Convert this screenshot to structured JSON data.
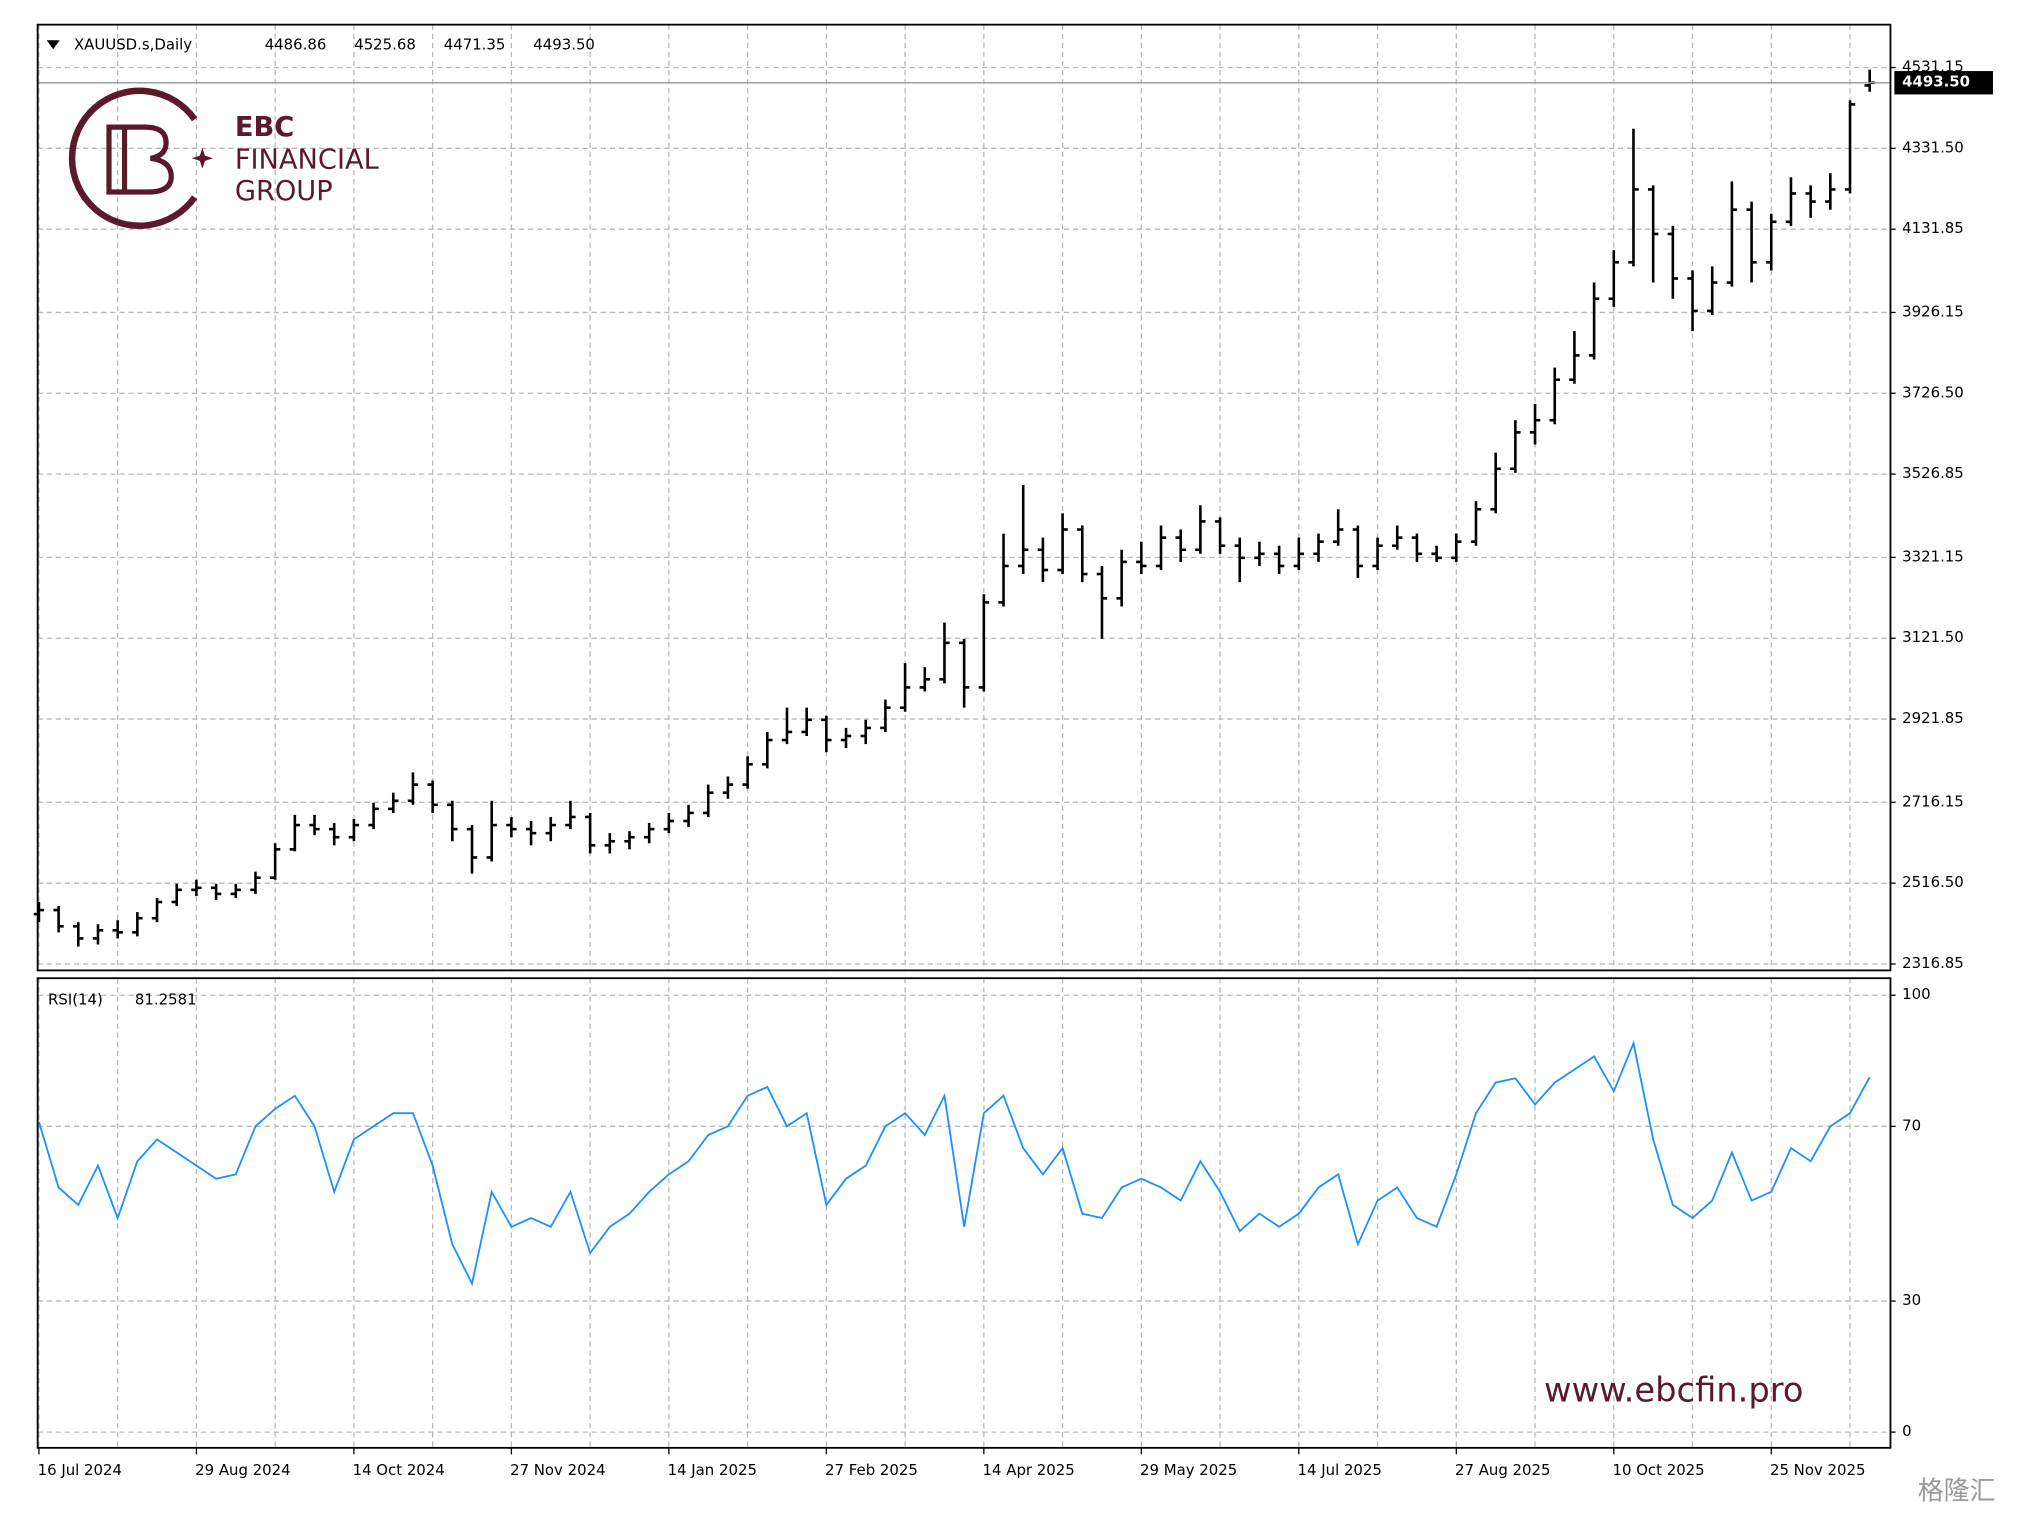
{
  "chart_data": {
    "type": "ohlc",
    "title": "XAUUSD.s,Daily",
    "header_values": [
      "4486.86",
      "4525.68",
      "4471.35",
      "4493.50"
    ],
    "color": "#000000",
    "categories": [
      "16 Jul 2024",
      null,
      null,
      null,
      null,
      null,
      null,
      null,
      "29 Aug 2024",
      null,
      null,
      null,
      null,
      null,
      null,
      null,
      "14 Oct 2024",
      null,
      null,
      null,
      null,
      null,
      null,
      null,
      "27 Nov 2024",
      null,
      null,
      null,
      null,
      null,
      null,
      null,
      "14 Jan 2025",
      null,
      null,
      null,
      null,
      null,
      null,
      null,
      "27 Feb 2025",
      null,
      null,
      null,
      null,
      null,
      null,
      null,
      "14 Apr 2025",
      null,
      null,
      null,
      null,
      null,
      null,
      null,
      "29 May 2025",
      null,
      null,
      null,
      null,
      null,
      null,
      null,
      "14 Jul 2025",
      null,
      null,
      null,
      null,
      null,
      null,
      null,
      "27 Aug 2025",
      null,
      null,
      null,
      null,
      null,
      null,
      null,
      "10 Oct 2025",
      null,
      null,
      null,
      null,
      null,
      null,
      null,
      "25 Nov 2025",
      null,
      null,
      null,
      null,
      null
    ],
    "values": [
      [
        2440,
        2470,
        2420,
        2450
      ],
      [
        2450,
        2460,
        2395,
        2410
      ],
      [
        2410,
        2420,
        2360,
        2380
      ],
      [
        2380,
        2415,
        2365,
        2400
      ],
      [
        2400,
        2425,
        2380,
        2395
      ],
      [
        2395,
        2445,
        2385,
        2430
      ],
      [
        2430,
        2480,
        2420,
        2470
      ],
      [
        2470,
        2515,
        2460,
        2500
      ],
      [
        2500,
        2525,
        2485,
        2505
      ],
      [
        2505,
        2515,
        2475,
        2490
      ],
      [
        2490,
        2515,
        2480,
        2500
      ],
      [
        2500,
        2545,
        2490,
        2530
      ],
      [
        2530,
        2615,
        2525,
        2600
      ],
      [
        2600,
        2685,
        2595,
        2660
      ],
      [
        2660,
        2685,
        2635,
        2650
      ],
      [
        2650,
        2665,
        2610,
        2630
      ],
      [
        2630,
        2675,
        2620,
        2660
      ],
      [
        2660,
        2715,
        2650,
        2700
      ],
      [
        2700,
        2740,
        2690,
        2720
      ],
      [
        2720,
        2790,
        2710,
        2760
      ],
      [
        2760,
        2770,
        2690,
        2710
      ],
      [
        2710,
        2720,
        2620,
        2650
      ],
      [
        2650,
        2660,
        2540,
        2580
      ],
      [
        2580,
        2720,
        2570,
        2660
      ],
      [
        2660,
        2680,
        2630,
        2650
      ],
      [
        2650,
        2670,
        2610,
        2640
      ],
      [
        2640,
        2680,
        2620,
        2660
      ],
      [
        2660,
        2720,
        2650,
        2680
      ],
      [
        2680,
        2690,
        2590,
        2610
      ],
      [
        2610,
        2640,
        2590,
        2620
      ],
      [
        2620,
        2645,
        2600,
        2630
      ],
      [
        2630,
        2665,
        2615,
        2650
      ],
      [
        2650,
        2690,
        2640,
        2670
      ],
      [
        2670,
        2710,
        2655,
        2690
      ],
      [
        2690,
        2760,
        2680,
        2740
      ],
      [
        2740,
        2780,
        2725,
        2760
      ],
      [
        2760,
        2830,
        2750,
        2810
      ],
      [
        2810,
        2890,
        2800,
        2870
      ],
      [
        2870,
        2950,
        2860,
        2890
      ],
      [
        2890,
        2950,
        2880,
        2920
      ],
      [
        2920,
        2930,
        2840,
        2870
      ],
      [
        2870,
        2900,
        2850,
        2880
      ],
      [
        2880,
        2920,
        2860,
        2900
      ],
      [
        2900,
        2970,
        2890,
        2950
      ],
      [
        2950,
        3060,
        2940,
        3000
      ],
      [
        3000,
        3050,
        2990,
        3020
      ],
      [
        3020,
        3160,
        3010,
        3110
      ],
      [
        3110,
        3120,
        2950,
        3000
      ],
      [
        3000,
        3230,
        2990,
        3210
      ],
      [
        3210,
        3380,
        3200,
        3300
      ],
      [
        3300,
        3500,
        3280,
        3340
      ],
      [
        3340,
        3370,
        3260,
        3290
      ],
      [
        3290,
        3430,
        3280,
        3390
      ],
      [
        3390,
        3400,
        3260,
        3280
      ],
      [
        3280,
        3300,
        3120,
        3220
      ],
      [
        3220,
        3340,
        3200,
        3310
      ],
      [
        3310,
        3360,
        3280,
        3300
      ],
      [
        3300,
        3400,
        3290,
        3370
      ],
      [
        3370,
        3390,
        3310,
        3340
      ],
      [
        3340,
        3450,
        3330,
        3410
      ],
      [
        3410,
        3420,
        3330,
        3350
      ],
      [
        3350,
        3370,
        3260,
        3320
      ],
      [
        3320,
        3360,
        3300,
        3330
      ],
      [
        3330,
        3350,
        3280,
        3300
      ],
      [
        3300,
        3370,
        3290,
        3330
      ],
      [
        3330,
        3380,
        3310,
        3360
      ],
      [
        3360,
        3440,
        3350,
        3390
      ],
      [
        3390,
        3400,
        3270,
        3300
      ],
      [
        3300,
        3370,
        3290,
        3350
      ],
      [
        3350,
        3400,
        3340,
        3370
      ],
      [
        3370,
        3380,
        3310,
        3330
      ],
      [
        3330,
        3350,
        3310,
        3320
      ],
      [
        3320,
        3380,
        3310,
        3360
      ],
      [
        3360,
        3460,
        3350,
        3440
      ],
      [
        3440,
        3580,
        3430,
        3540
      ],
      [
        3540,
        3660,
        3530,
        3630
      ],
      [
        3630,
        3700,
        3600,
        3660
      ],
      [
        3660,
        3790,
        3650,
        3760
      ],
      [
        3760,
        3880,
        3750,
        3820
      ],
      [
        3820,
        4000,
        3810,
        3960
      ],
      [
        3960,
        4080,
        3940,
        4050
      ],
      [
        4050,
        4380,
        4040,
        4230
      ],
      [
        4230,
        4240,
        4000,
        4120
      ],
      [
        4120,
        4140,
        3960,
        4010
      ],
      [
        4010,
        4030,
        3880,
        3930
      ],
      [
        3930,
        4040,
        3920,
        4000
      ],
      [
        4000,
        4250,
        3990,
        4180
      ],
      [
        4180,
        4200,
        4000,
        4050
      ],
      [
        4050,
        4170,
        4030,
        4150
      ],
      [
        4150,
        4260,
        4140,
        4220
      ],
      [
        4220,
        4240,
        4160,
        4200
      ],
      [
        4200,
        4270,
        4180,
        4230
      ],
      [
        4230,
        4450,
        4220,
        4440
      ],
      [
        4486.86,
        4525.68,
        4471.35,
        4493.5
      ]
    ],
    "ylim": [
      2301,
      4637
    ],
    "yticks": [
      4531.15,
      {
        "value": 4331.5,
        "label": "4331.50"
      },
      4131.85,
      3926.15,
      {
        "value": 3726.5,
        "label": "3726.50"
      },
      3526.85,
      3321.15,
      {
        "value": 3121.5,
        "label": "3121.50"
      },
      2921.85,
      2716.15,
      {
        "value": 2516.5,
        "label": "2516.50"
      },
      2316.85
    ],
    "grid": true,
    "indicator": {
      "type": "line",
      "name": "RSI(14)",
      "color": "#1e90ff",
      "values": [
        71,
        56,
        52,
        61,
        49,
        62,
        67,
        64,
        61,
        58,
        59,
        70,
        74,
        77,
        70,
        55,
        67,
        70,
        73,
        73,
        61,
        43,
        34,
        55,
        47,
        49,
        47,
        55,
        41,
        47,
        50,
        55,
        59,
        62,
        68,
        70,
        77,
        79,
        70,
        73,
        52,
        58,
        61,
        70,
        73,
        68,
        77,
        47,
        73,
        77,
        65,
        59,
        65,
        50,
        49,
        56,
        58,
        56,
        53,
        62,
        55,
        46,
        50,
        47,
        50,
        56,
        59,
        43,
        53,
        56,
        49,
        47,
        59,
        73,
        80,
        81,
        75,
        80,
        83,
        86,
        78,
        89,
        67,
        52,
        49,
        53,
        64,
        53,
        55,
        65,
        62,
        70,
        73,
        81.2581
      ],
      "ylim": [
        -3.6,
        103.9
      ],
      "yticks": [
        100,
        70,
        30,
        0
      ]
    }
  },
  "logo": {
    "line1": "EBC",
    "line2": "FINANCIAL",
    "line3": "GROUP"
  },
  "website": "www.ebcfin.pro",
  "corner_mark": "格隆汇"
}
